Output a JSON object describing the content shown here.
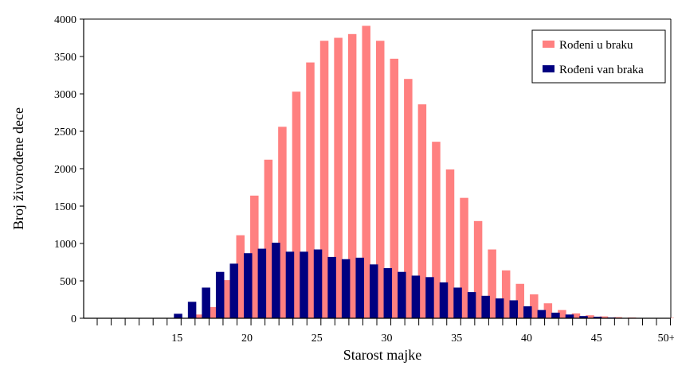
{
  "chart_data": {
    "type": "bar",
    "xlabel": "Starost majke",
    "ylabel": "Broj živorođene dece",
    "ylim": [
      0,
      4000
    ],
    "yticks": [
      0,
      500,
      1000,
      1500,
      2000,
      2500,
      3000,
      3500,
      4000
    ],
    "x_tick_labels": [
      {
        "age": 15,
        "label": "15"
      },
      {
        "age": 20,
        "label": "20"
      },
      {
        "age": 25,
        "label": "25"
      },
      {
        "age": 30,
        "label": "30"
      },
      {
        "age": 35,
        "label": "35"
      },
      {
        "age": 40,
        "label": "40"
      },
      {
        "age": 45,
        "label": "45"
      },
      {
        "age": 50,
        "label": "50+"
      }
    ],
    "legend_position": "top-right",
    "categories": [
      10,
      11,
      12,
      13,
      14,
      15,
      16,
      17,
      18,
      19,
      20,
      21,
      22,
      23,
      24,
      25,
      26,
      27,
      28,
      29,
      30,
      31,
      32,
      33,
      34,
      35,
      36,
      37,
      38,
      39,
      40,
      41,
      42,
      43,
      44,
      45,
      46,
      47,
      48,
      49,
      50
    ],
    "series": [
      {
        "name": "Rođeni u braku",
        "color": "#FF8080",
        "values": [
          0,
          0,
          0,
          0,
          0,
          5,
          50,
          150,
          510,
          1110,
          1640,
          2120,
          2560,
          3030,
          3420,
          3710,
          3750,
          3800,
          3910,
          3710,
          3470,
          3200,
          2860,
          2360,
          1990,
          1610,
          1300,
          920,
          640,
          460,
          320,
          200,
          110,
          65,
          40,
          25,
          15,
          10,
          5,
          5,
          5
        ]
      },
      {
        "name": "Rođeni van braka",
        "color": "#000080",
        "values": [
          0,
          0,
          0,
          0,
          0,
          60,
          220,
          410,
          620,
          730,
          870,
          930,
          1010,
          890,
          890,
          920,
          820,
          790,
          810,
          720,
          670,
          620,
          570,
          550,
          480,
          410,
          350,
          300,
          265,
          240,
          160,
          110,
          75,
          50,
          30,
          20,
          10,
          5,
          5,
          0,
          0
        ]
      }
    ]
  }
}
